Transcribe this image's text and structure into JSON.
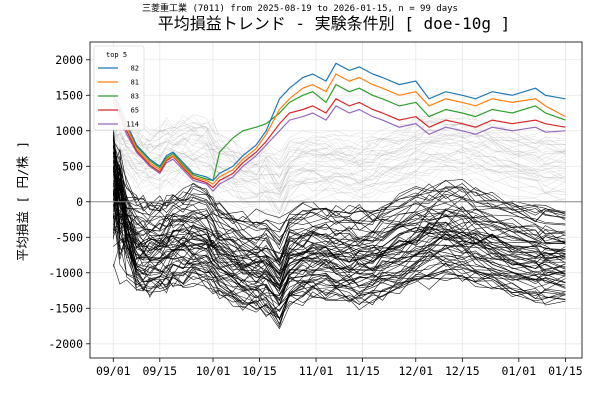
{
  "chart_data": {
    "type": "line",
    "suptitle": "三菱重工業 (7011) from 2025-08-19 to 2026-01-15, n = 99 days",
    "title": "平均損益トレンド - 実験条件別 [ doe-10g ]",
    "xlabel": "",
    "ylabel": "平均損益 [ 円/株 ]",
    "ylim": [
      -2200,
      2250
    ],
    "xlim": [
      "2025-08-25",
      "2026-01-20"
    ],
    "yticks": [
      2000,
      1500,
      1000,
      500,
      0,
      -500,
      -1000,
      -1500,
      -2000
    ],
    "xticks": [
      {
        "date": "2025-09-01",
        "label": "09/01"
      },
      {
        "date": "2025-09-15",
        "label": "09/15"
      },
      {
        "date": "2025-10-01",
        "label": "10/01"
      },
      {
        "date": "2025-10-15",
        "label": "10/15"
      },
      {
        "date": "2025-11-01",
        "label": "11/01"
      },
      {
        "date": "2025-11-15",
        "label": "11/15"
      },
      {
        "date": "2025-12-01",
        "label": "12/01"
      },
      {
        "date": "2025-12-15",
        "label": "12/15"
      },
      {
        "date": "2026-01-01",
        "label": "01/01"
      },
      {
        "date": "2026-01-15",
        "label": "01/15"
      }
    ],
    "grid": true,
    "zero_line": true,
    "legend": {
      "title": "top 5",
      "position": "top-left"
    },
    "x": [
      "2025-09-01",
      "2025-09-03",
      "2025-09-05",
      "2025-09-08",
      "2025-09-10",
      "2025-09-12",
      "2025-09-15",
      "2025-09-17",
      "2025-09-19",
      "2025-09-22",
      "2025-09-25",
      "2025-09-29",
      "2025-10-01",
      "2025-10-03",
      "2025-10-07",
      "2025-10-10",
      "2025-10-14",
      "2025-10-17",
      "2025-10-21",
      "2025-10-24",
      "2025-10-28",
      "2025-10-31",
      "2025-11-04",
      "2025-11-07",
      "2025-11-11",
      "2025-11-14",
      "2025-11-18",
      "2025-11-21",
      "2025-11-26",
      "2025-12-01",
      "2025-12-05",
      "2025-12-10",
      "2025-12-15",
      "2025-12-19",
      "2025-12-24",
      "2025-12-30",
      "2026-01-06",
      "2026-01-09",
      "2026-01-15"
    ],
    "series": [
      {
        "name": "82",
        "color": "#1f77b4",
        "values": [
          1500,
          1350,
          1100,
          800,
          700,
          600,
          500,
          650,
          700,
          550,
          400,
          350,
          300,
          400,
          500,
          650,
          800,
          1000,
          1450,
          1600,
          1750,
          1800,
          1700,
          1950,
          1850,
          1900,
          1800,
          1750,
          1650,
          1700,
          1450,
          1550,
          1500,
          1450,
          1550,
          1500,
          1600,
          1500,
          1450
        ]
      },
      {
        "name": "81",
        "color": "#ff7f0e",
        "values": [
          1450,
          1300,
          1050,
          750,
          650,
          550,
          450,
          600,
          650,
          500,
          350,
          300,
          250,
          350,
          450,
          600,
          750,
          950,
          1300,
          1450,
          1600,
          1650,
          1550,
          1800,
          1700,
          1750,
          1650,
          1600,
          1500,
          1550,
          1350,
          1450,
          1400,
          1350,
          1450,
          1400,
          1450,
          1350,
          1200
        ]
      },
      {
        "name": "83",
        "color": "#2ca02c",
        "values": [
          1500,
          1300,
          1050,
          780,
          680,
          580,
          480,
          620,
          680,
          520,
          380,
          320,
          300,
          700,
          900,
          1000,
          1050,
          1100,
          1250,
          1400,
          1500,
          1550,
          1400,
          1650,
          1550,
          1600,
          1500,
          1450,
          1350,
          1400,
          1200,
          1300,
          1250,
          1200,
          1300,
          1250,
          1350,
          1250,
          1150
        ]
      },
      {
        "name": "65",
        "color": "#d62728",
        "values": [
          1450,
          1250,
          1000,
          720,
          620,
          520,
          420,
          580,
          640,
          480,
          330,
          270,
          200,
          300,
          400,
          550,
          700,
          850,
          1100,
          1250,
          1300,
          1350,
          1250,
          1450,
          1350,
          1400,
          1300,
          1250,
          1150,
          1200,
          1050,
          1150,
          1100,
          1050,
          1150,
          1100,
          1150,
          1100,
          1050
        ]
      },
      {
        "name": "114",
        "color": "#9467bd",
        "values": [
          1400,
          1200,
          950,
          700,
          600,
          500,
          400,
          550,
          600,
          450,
          300,
          250,
          150,
          250,
          350,
          500,
          650,
          800,
          1000,
          1150,
          1200,
          1250,
          1150,
          1350,
          1250,
          1300,
          1200,
          1150,
          1050,
          1100,
          950,
          1050,
          1000,
          950,
          1050,
          1000,
          1050,
          980,
          1000
        ]
      }
    ]
  }
}
